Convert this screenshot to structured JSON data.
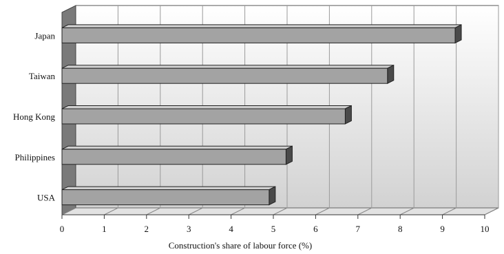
{
  "chart_data": {
    "type": "bar",
    "orientation": "horizontal",
    "style": "3d",
    "categories": [
      "Japan",
      "Taiwan",
      "Hong Kong",
      "Philippines",
      "USA"
    ],
    "values": [
      9.3,
      7.7,
      6.7,
      5.3,
      4.9
    ],
    "xlabel": "Construction's share of labour force (%)",
    "xlim": [
      0,
      10
    ],
    "xticks": [
      0,
      1,
      2,
      3,
      4,
      5,
      6,
      7,
      8,
      9,
      10
    ],
    "grid": "vertical",
    "legend": "none",
    "colors": {
      "bar_front": "#a3a3a3",
      "bar_top": "#cfcfcf",
      "bar_side": "#4a4a4a",
      "left_wall": "#7a7a7a",
      "back_wall_top": "#ffffff",
      "back_wall_bottom": "#d2d2d2"
    }
  }
}
